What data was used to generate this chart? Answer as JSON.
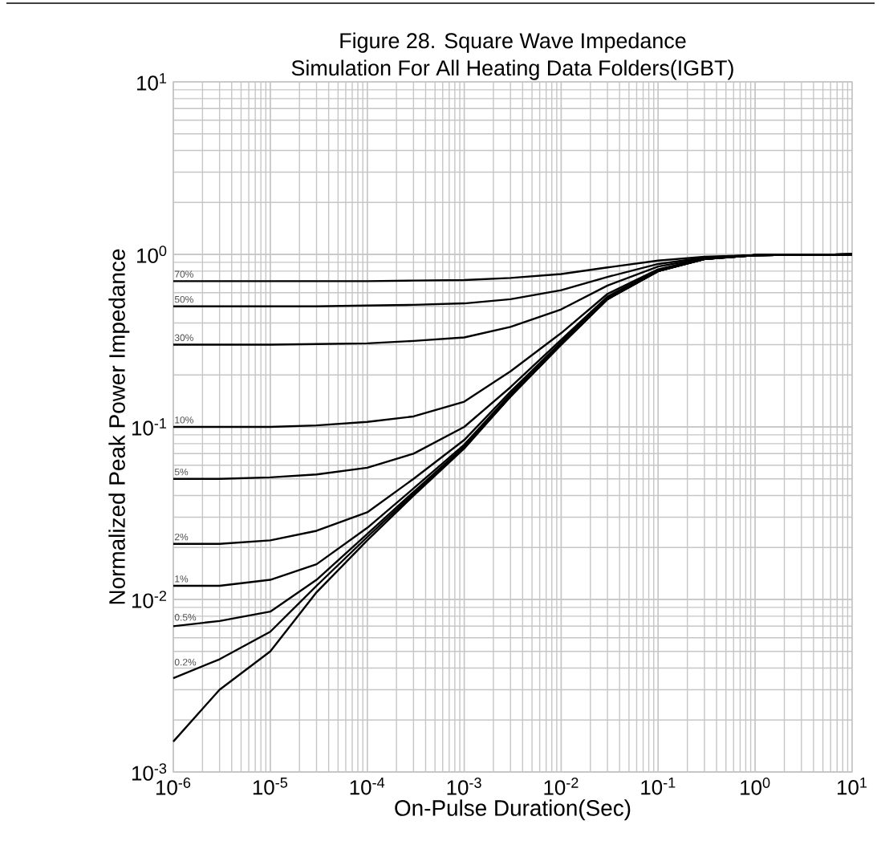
{
  "chart_data": {
    "type": "line",
    "title": "Figure 28. Square Wave Impedance",
    "subtitle": "Simulation For All Heating Data Folders(IGBT)",
    "xlabel": "On-Pulse Duration(Sec)",
    "ylabel": "Normalized Peak Power Impedance",
    "log": "xy",
    "grid": true,
    "xlim": [
      1e-06,
      10
    ],
    "ylim": [
      0.001,
      10
    ],
    "xticks": [
      {
        "value": 1e-06,
        "label": "10$^{-6}$"
      },
      {
        "value": 1e-05,
        "label": "10$^{-5}$"
      },
      {
        "value": 0.0001,
        "label": "10$^{-4}$"
      },
      {
        "value": 0.001,
        "label": "10$^{-3}$"
      },
      {
        "value": 0.01,
        "label": "10$^{-2}$"
      },
      {
        "value": 0.1,
        "label": "10$^{-1}$"
      },
      {
        "value": 1,
        "label": "10$^{0}$"
      },
      {
        "value": 10,
        "label": "10$^{1}$"
      }
    ],
    "yticks": [
      {
        "value": 0.001,
        "label": "10$^{-3}$"
      },
      {
        "value": 0.01,
        "label": "10$^{-2}$"
      },
      {
        "value": 0.1,
        "label": "10$^{-1}$"
      },
      {
        "value": 1,
        "label": "10$^{0}$"
      },
      {
        "value": 10,
        "label": "10$^{1}$"
      }
    ],
    "x": [
      1e-06,
      3e-06,
      1e-05,
      3e-05,
      0.0001,
      0.0003,
      0.001,
      0.003,
      0.01,
      0.03,
      0.1,
      0.3,
      1,
      10
    ],
    "series": [
      {
        "name": "70%",
        "color": "#000000",
        "values": [
          0.7,
          0.7,
          0.7,
          0.7,
          0.7,
          0.705,
          0.71,
          0.73,
          0.77,
          0.84,
          0.92,
          0.97,
          0.99,
          1.0
        ]
      },
      {
        "name": "50%",
        "color": "#000000",
        "values": [
          0.5,
          0.5,
          0.5,
          0.5,
          0.505,
          0.51,
          0.52,
          0.55,
          0.62,
          0.74,
          0.88,
          0.96,
          0.99,
          1.0
        ]
      },
      {
        "name": "30%",
        "color": "#000000",
        "values": [
          0.3,
          0.3,
          0.3,
          0.302,
          0.305,
          0.315,
          0.33,
          0.38,
          0.48,
          0.66,
          0.85,
          0.95,
          0.99,
          1.0
        ]
      },
      {
        "name": "10%",
        "color": "#000000",
        "values": [
          0.1,
          0.1,
          0.1,
          0.102,
          0.107,
          0.115,
          0.14,
          0.21,
          0.35,
          0.59,
          0.82,
          0.95,
          0.99,
          1.0
        ]
      },
      {
        "name": "5%",
        "color": "#000000",
        "values": [
          0.05,
          0.05,
          0.051,
          0.053,
          0.058,
          0.07,
          0.1,
          0.17,
          0.32,
          0.57,
          0.81,
          0.94,
          0.99,
          1.0
        ]
      },
      {
        "name": "2%",
        "color": "#000000",
        "values": [
          0.021,
          0.021,
          0.022,
          0.025,
          0.032,
          0.05,
          0.084,
          0.16,
          0.31,
          0.56,
          0.81,
          0.94,
          0.99,
          1.0
        ]
      },
      {
        "name": "1%",
        "color": "#000000",
        "values": [
          0.012,
          0.012,
          0.013,
          0.016,
          0.026,
          0.044,
          0.079,
          0.155,
          0.31,
          0.56,
          0.8,
          0.94,
          0.99,
          1.0
        ]
      },
      {
        "name": "0.5%",
        "color": "#000000",
        "values": [
          0.007,
          0.0075,
          0.0085,
          0.013,
          0.024,
          0.042,
          0.077,
          0.152,
          0.3,
          0.55,
          0.8,
          0.94,
          0.99,
          1.0
        ]
      },
      {
        "name": "0.2%",
        "color": "#000000",
        "values": [
          0.0035,
          0.0045,
          0.0065,
          0.012,
          0.023,
          0.041,
          0.076,
          0.15,
          0.3,
          0.55,
          0.8,
          0.94,
          0.99,
          1.0
        ]
      },
      {
        "color": "#000000",
        "values": [
          0.0015,
          0.003,
          0.005,
          0.011,
          0.022,
          0.04,
          0.075,
          0.15,
          0.3,
          0.55,
          0.8,
          0.94,
          0.99,
          1.0
        ]
      }
    ]
  }
}
